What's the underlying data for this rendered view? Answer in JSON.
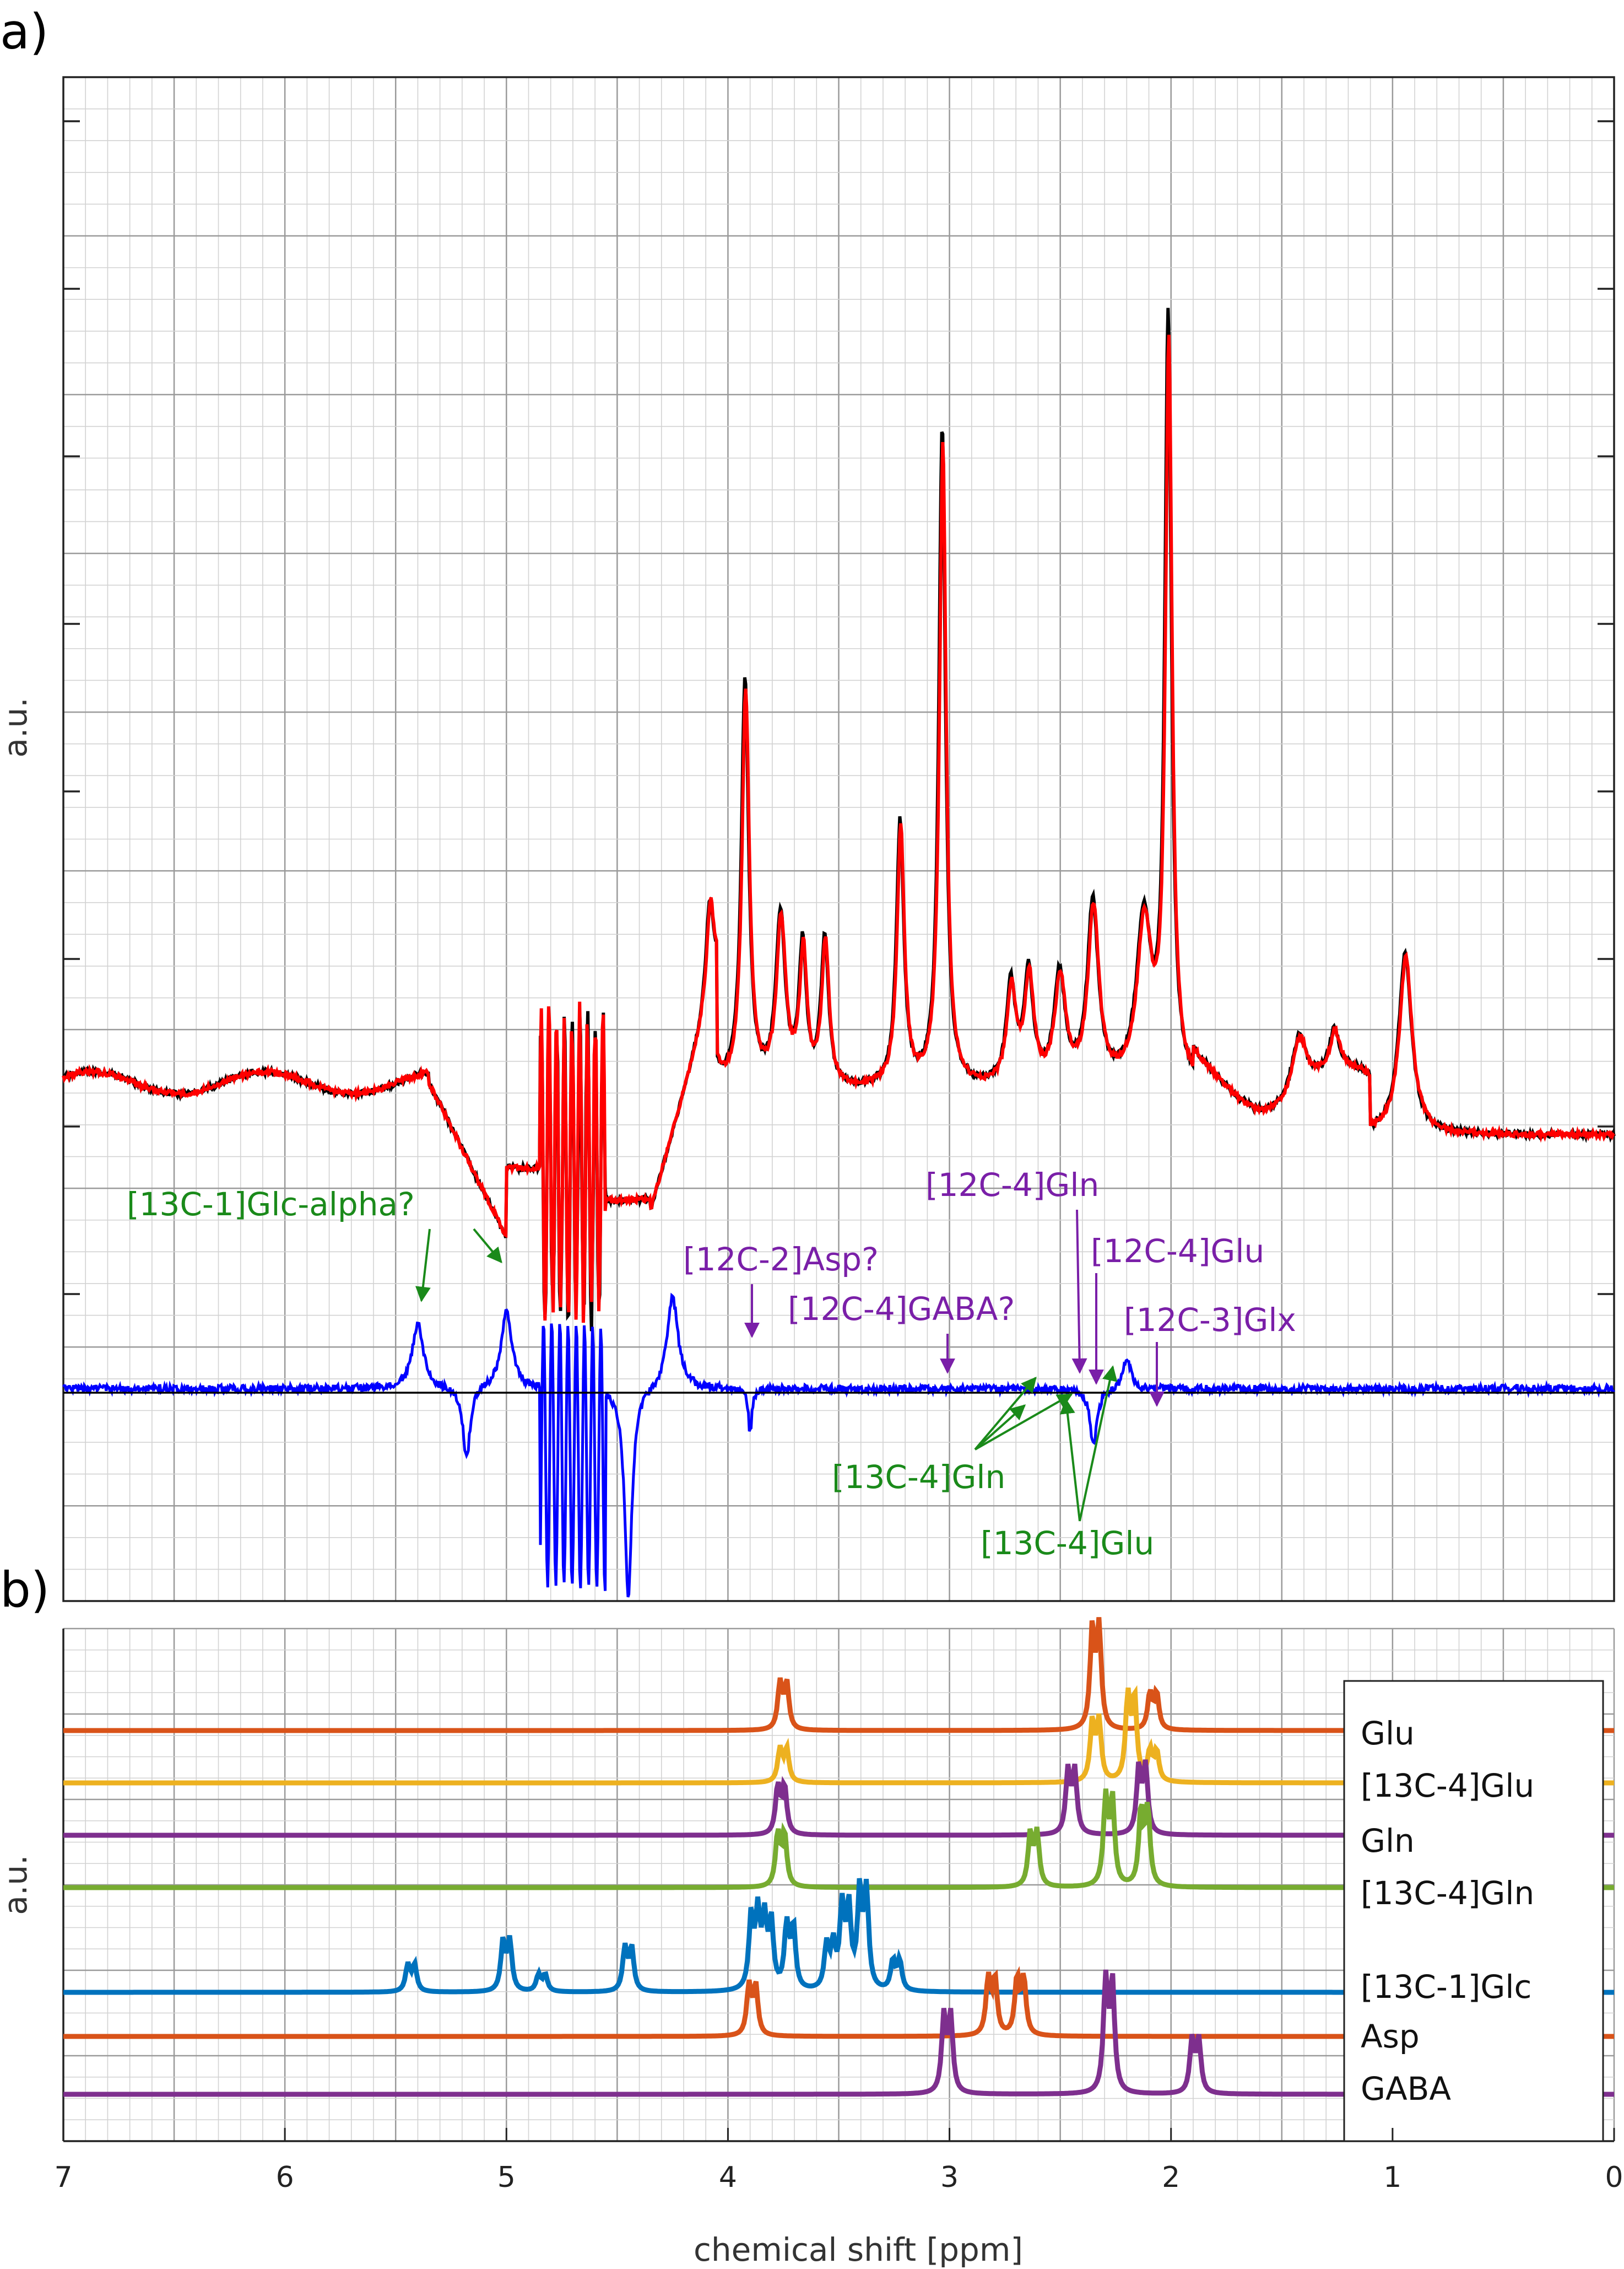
{
  "panel_a": {
    "label": "a)",
    "ylabel": "a.u.",
    "annotations": [
      {
        "text": "[13C-1]Glc-alpha?",
        "color": "#1a8a1a",
        "ppm": 5.4
      },
      {
        "text": "[12C-4]Gln",
        "color": "#7a1fa8",
        "ppm": 2.45
      },
      {
        "text": "[12C-4]Glu",
        "color": "#7a1fa8",
        "ppm": 2.37
      },
      {
        "text": "[12C-2]Asp?",
        "color": "#7a1fa8",
        "ppm": 3.9
      },
      {
        "text": "[12C-4]GABA?",
        "color": "#7a1fa8",
        "ppm": 3.02
      },
      {
        "text": "[12C-3]Glx",
        "color": "#7a1fa8",
        "ppm": 2.1
      },
      {
        "text": "[13C-4]Gln",
        "color": "#1a8a1a",
        "ppm": 2.62
      },
      {
        "text": "[13C-4]Glu",
        "color": "#1a8a1a",
        "ppm": 2.2
      }
    ]
  },
  "panel_b": {
    "label": "b)",
    "ylabel": "a.u."
  },
  "xlabel": "chemical shift [ppm]",
  "chart_data": [
    {
      "type": "line",
      "xlim": [
        7,
        0
      ],
      "x_reversed": true,
      "x_ticks": [
        7,
        6,
        5,
        4,
        3,
        2,
        1,
        0
      ],
      "grid": true,
      "series_colors": [
        "#000000",
        "#ff0000",
        "#0000ff"
      ],
      "peaks": [
        {
          "ppm": 2.01,
          "height": 0.82,
          "note": "largest peak"
        },
        {
          "ppm": 3.03,
          "height": 0.58
        },
        {
          "ppm": 3.92,
          "height": 0.42
        },
        {
          "ppm": 3.22,
          "height": 0.28
        },
        {
          "ppm": 0.94,
          "height": 0.16
        }
      ]
    },
    {
      "type": "line",
      "xlim": [
        7,
        0
      ],
      "grid": true,
      "legend_position": "right",
      "series": [
        {
          "name": "Glu",
          "color": "#d95319",
          "peaks_ppm": [
            3.75,
            2.34,
            2.08
          ]
        },
        {
          "name": "[13C-4]Glu",
          "color": "#edb120",
          "peaks_ppm": [
            3.75,
            2.34,
            2.18,
            2.08
          ]
        },
        {
          "name": "Gln",
          "color": "#7e2f8e",
          "peaks_ppm": [
            3.76,
            2.45,
            2.13
          ]
        },
        {
          "name": "[13C-4]Gln",
          "color": "#77ac30",
          "peaks_ppm": [
            3.76,
            2.62,
            2.28,
            2.12
          ]
        },
        {
          "name": "[13C-1]Glc",
          "color": "#0072bd",
          "peaks_ppm": [
            5.43,
            5.0,
            4.84,
            4.45,
            3.88,
            3.82,
            3.72,
            3.54,
            3.47,
            3.39,
            3.24
          ]
        },
        {
          "name": "Asp",
          "color": "#d95319",
          "peaks_ppm": [
            3.89,
            2.81,
            2.68
          ]
        },
        {
          "name": "GABA",
          "color": "#7e2f8e",
          "peaks_ppm": [
            3.01,
            2.28,
            1.89
          ]
        }
      ]
    }
  ]
}
